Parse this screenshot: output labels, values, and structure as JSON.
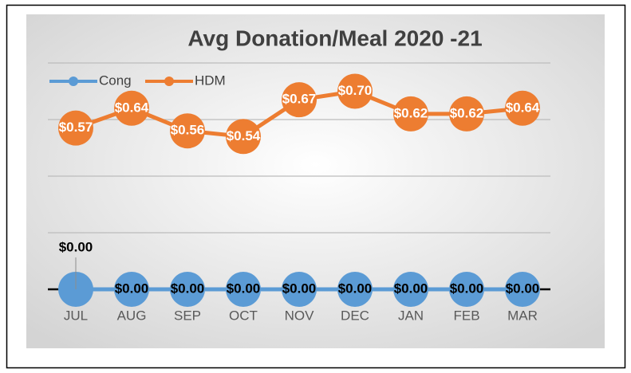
{
  "chart_data": {
    "type": "line",
    "title": "Avg Donation/Meal 2020 -21",
    "categories": [
      "JUL",
      "AUG",
      "SEP",
      "OCT",
      "NOV",
      "DEC",
      "JAN",
      "FEB",
      "MAR"
    ],
    "series": [
      {
        "name": "Cong",
        "color": "#5b9bd5",
        "values": [
          0,
          0,
          0,
          0,
          0,
          0,
          0,
          0,
          0
        ],
        "value_labels": [
          "$0.00",
          "$0.00",
          "$0.00",
          "$0.00",
          "$0.00",
          "$0.00",
          "$0.00",
          "$0.00",
          "$0.00"
        ]
      },
      {
        "name": "HDM",
        "color": "#ed7d31",
        "values": [
          0.57,
          0.64,
          0.56,
          0.54,
          0.67,
          0.7,
          0.62,
          0.62,
          0.64
        ],
        "value_labels": [
          "$0.57",
          "$0.64",
          "$0.56",
          "$0.54",
          "$0.67",
          "$0.70",
          "$0.62",
          "$0.62",
          "$0.64"
        ]
      }
    ],
    "ylim": [
      0,
      0.8
    ],
    "yticks": [
      0,
      0.2,
      0.4,
      0.6,
      0.8
    ],
    "grid": true,
    "legend": "top-left"
  }
}
